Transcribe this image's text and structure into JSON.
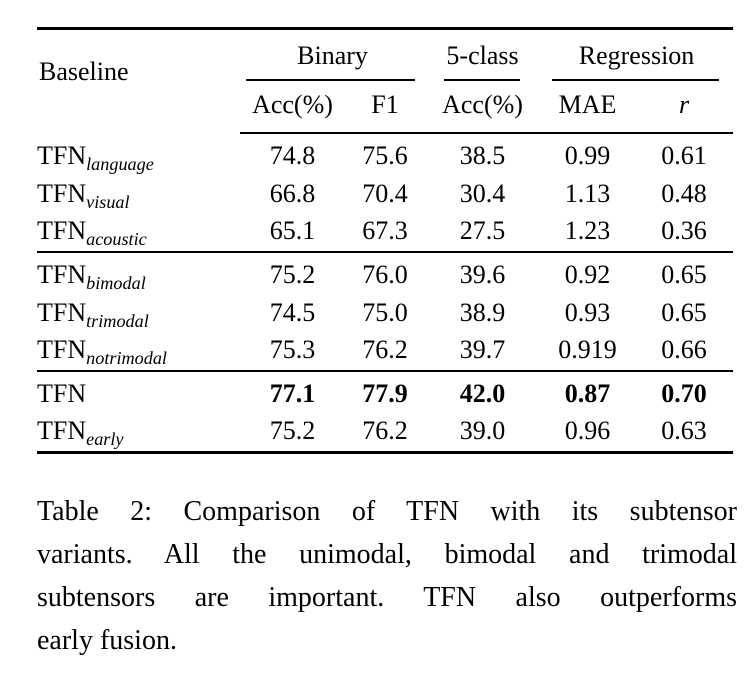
{
  "page": {
    "background": "#ffffff",
    "text_color": "#000000"
  },
  "table": {
    "header": {
      "baseline_label": "Baseline",
      "groups": [
        {
          "label": "Binary",
          "span": 2
        },
        {
          "label": "5-class",
          "span": 1
        },
        {
          "label": "Regression",
          "span": 2
        }
      ],
      "subheaders": [
        "Acc(%)",
        "F1",
        "Acc(%)",
        "MAE",
        "r"
      ]
    },
    "groups": [
      {
        "rows": [
          {
            "model": "TFN",
            "subscript": "language",
            "values": [
              "74.8",
              "75.6",
              "38.5",
              "0.99",
              "0.61"
            ],
            "bold": false
          },
          {
            "model": "TFN",
            "subscript": "visual",
            "values": [
              "66.8",
              "70.4",
              "30.4",
              "1.13",
              "0.48"
            ],
            "bold": false
          },
          {
            "model": "TFN",
            "subscript": "acoustic",
            "values": [
              "65.1",
              "67.3",
              "27.5",
              "1.23",
              "0.36"
            ],
            "bold": false
          }
        ]
      },
      {
        "rows": [
          {
            "model": "TFN",
            "subscript": "bimodal",
            "values": [
              "75.2",
              "76.0",
              "39.6",
              "0.92",
              "0.65"
            ],
            "bold": false
          },
          {
            "model": "TFN",
            "subscript": "trimodal",
            "values": [
              "74.5",
              "75.0",
              "38.9",
              "0.93",
              "0.65"
            ],
            "bold": false
          },
          {
            "model": "TFN",
            "subscript": "notrimodal",
            "values": [
              "75.3",
              "76.2",
              "39.7",
              "0.919",
              "0.66"
            ],
            "bold": false
          }
        ]
      },
      {
        "rows": [
          {
            "model": "TFN",
            "subscript": "",
            "values": [
              "77.1",
              "77.9",
              "42.0",
              "0.87",
              "0.70"
            ],
            "bold": true
          },
          {
            "model": "TFN",
            "subscript": "early",
            "values": [
              "75.2",
              "76.2",
              "39.0",
              "0.96",
              "0.63"
            ],
            "bold": false
          }
        ]
      }
    ]
  },
  "caption": {
    "full_text": "Table 2: Comparison of TFN with its subtensor variants. All the unimodal, bimodal and trimodal subtensors are important. TFN also outperforms early fusion.",
    "lines": [
      "Table 2: Comparison of TFN with its subtensor",
      "variants. All the unimodal, bimodal and trimodal",
      "subtensors are important. TFN also outperforms",
      "early fusion."
    ]
  }
}
